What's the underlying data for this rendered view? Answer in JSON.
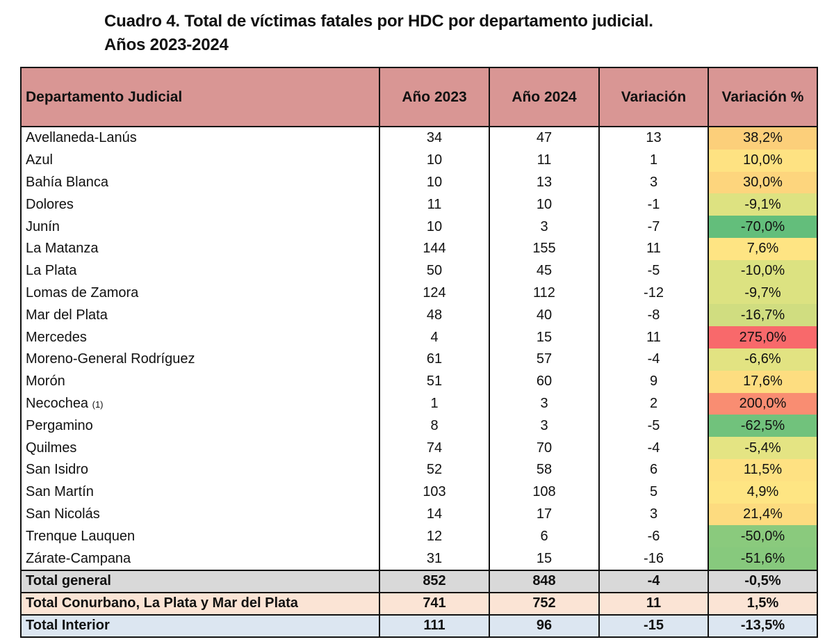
{
  "title_line1": "Cuadro 4. Total de víctimas fatales por HDC por departamento judicial.",
  "title_line2": "Años 2023-2024",
  "headers": [
    "Departamento Judicial",
    "Año 2023",
    "Año 2024",
    "Variación",
    "Variación %"
  ],
  "rows": [
    {
      "name": "Avellaneda-Lanús",
      "note": "",
      "y2023": "34",
      "y2024": "47",
      "var": "13",
      "pct": "38,2%",
      "color": "#fccf7a"
    },
    {
      "name": "Azul",
      "note": "",
      "y2023": "10",
      "y2024": "11",
      "var": "1",
      "pct": "10,0%",
      "color": "#fee282"
    },
    {
      "name": "Bahía Blanca",
      "note": "",
      "y2023": "10",
      "y2024": "13",
      "var": "3",
      "pct": "30,0%",
      "color": "#fdd57d"
    },
    {
      "name": "Dolores",
      "note": "",
      "y2023": "11",
      "y2024": "10",
      "var": "-1",
      "pct": "-9,1%",
      "color": "#dde281"
    },
    {
      "name": "Junín",
      "note": "",
      "y2023": "10",
      "y2024": "3",
      "var": "-7",
      "pct": "-70,0%",
      "color": "#63be7b"
    },
    {
      "name": "La Matanza",
      "note": "",
      "y2023": "144",
      "y2024": "155",
      "var": "11",
      "pct": "7,6%",
      "color": "#fee483"
    },
    {
      "name": "La Plata",
      "note": "",
      "y2023": "50",
      "y2024": "45",
      "var": "-5",
      "pct": "-10,0%",
      "color": "#dce281"
    },
    {
      "name": "Lomas de Zamora",
      "note": "",
      "y2023": "124",
      "y2024": "112",
      "var": "-12",
      "pct": "-9,7%",
      "color": "#dce281"
    },
    {
      "name": "Mar del Plata",
      "note": "",
      "y2023": "48",
      "y2024": "40",
      "var": "-8",
      "pct": "-16,7%",
      "color": "#d0dd80"
    },
    {
      "name": "Mercedes",
      "note": "",
      "y2023": "4",
      "y2024": "15",
      "var": "11",
      "pct": "275,0%",
      "color": "#f8696b"
    },
    {
      "name": "Moreno-General Rodríguez",
      "note": "",
      "y2023": "61",
      "y2024": "57",
      "var": "-4",
      "pct": "-6,6%",
      "color": "#e2e382"
    },
    {
      "name": "Morón",
      "note": "",
      "y2023": "51",
      "y2024": "60",
      "var": "9",
      "pct": "17,6%",
      "color": "#fddd80"
    },
    {
      "name": "Necochea",
      "note": "(1)",
      "y2023": "1",
      "y2024": "3",
      "var": "2",
      "pct": "200,0%",
      "color": "#f98d72"
    },
    {
      "name": "Pergamino",
      "note": "",
      "y2023": "8",
      "y2024": "3",
      "var": "-5",
      "pct": "-62,5%",
      "color": "#71c27c"
    },
    {
      "name": "Quilmes",
      "note": "",
      "y2023": "74",
      "y2024": "70",
      "var": "-4",
      "pct": "-5,4%",
      "color": "#e4e483"
    },
    {
      "name": "San Isidro",
      "note": "",
      "y2023": "52",
      "y2024": "58",
      "var": "6",
      "pct": "11,5%",
      "color": "#fee182"
    },
    {
      "name": "San Martín",
      "note": "",
      "y2023": "103",
      "y2024": "108",
      "var": "5",
      "pct": "4,9%",
      "color": "#fee583"
    },
    {
      "name": "San Nicolás",
      "note": "",
      "y2023": "14",
      "y2024": "17",
      "var": "3",
      "pct": "21,4%",
      "color": "#fddb7f"
    },
    {
      "name": "Trenque Lauquen",
      "note": "",
      "y2023": "12",
      "y2024": "6",
      "var": "-6",
      "pct": "-50,0%",
      "color": "#8aca7d"
    },
    {
      "name": "Zárate-Campana",
      "note": "",
      "y2023": "31",
      "y2024": "15",
      "var": "-16",
      "pct": "-51,6%",
      "color": "#87c97d"
    }
  ],
  "totals": [
    {
      "name": "Total general",
      "y2023": "852",
      "y2024": "848",
      "var": "-4",
      "pct": "-0,5%",
      "cls": "tg"
    },
    {
      "name": "Total Conurbano, La Plata y Mar del Plata",
      "y2023": "741",
      "y2024": "752",
      "var": "11",
      "pct": "1,5%",
      "cls": "tc"
    },
    {
      "name": "Total Interior",
      "y2023": "111",
      "y2024": "96",
      "var": "-15",
      "pct": "-13,5%",
      "cls": "ti"
    }
  ]
}
